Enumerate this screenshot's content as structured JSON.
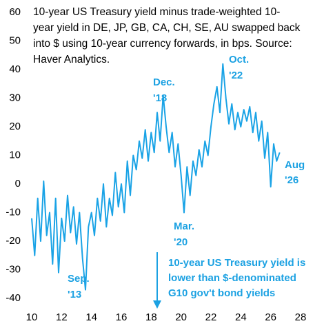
{
  "chart_data": {
    "type": "line",
    "title_lines": [
      "10-year US Treasury yield minus trade-weighted 10-",
      "year yield in DE, JP, GB, CA, CH, SE, AU swapped back",
      "into $ using 10-year currency forwards, in bps. Source:",
      "Haver Analytics."
    ],
    "annotations": [
      {
        "lines": [
          "Dec.",
          "'18"
        ]
      },
      {
        "lines": [
          "Oct.",
          "'22"
        ]
      },
      {
        "lines": [
          "Mar.",
          "'20"
        ]
      },
      {
        "lines": [
          "Sep.",
          "'13"
        ]
      },
      {
        "lines": [
          "Aug",
          "'26"
        ]
      },
      {
        "lines": [
          "10-year US Treasury yield is",
          "lower than $-denominated",
          "G10 gov't bond yields"
        ]
      }
    ],
    "color": "#1aa3e6",
    "x": [
      10.0,
      10.2,
      10.4,
      10.6,
      10.8,
      11.0,
      11.2,
      11.4,
      11.6,
      11.8,
      12.0,
      12.2,
      12.4,
      12.6,
      12.8,
      13.0,
      13.2,
      13.4,
      13.6,
      13.8,
      14.0,
      14.2,
      14.4,
      14.6,
      14.8,
      15.0,
      15.2,
      15.4,
      15.6,
      15.8,
      16.0,
      16.2,
      16.4,
      16.6,
      16.8,
      17.0,
      17.2,
      17.4,
      17.6,
      17.8,
      18.0,
      18.2,
      18.4,
      18.6,
      18.8,
      19.0,
      19.2,
      19.4,
      19.6,
      19.8,
      20.0,
      20.2,
      20.4,
      20.6,
      20.8,
      21.0,
      21.2,
      21.4,
      21.6,
      21.8,
      22.0,
      22.2,
      22.4,
      22.6,
      22.8,
      23.0,
      23.2,
      23.4,
      23.6,
      23.8,
      24.0,
      24.2,
      24.4,
      24.6,
      24.8,
      25.0,
      25.2,
      25.4,
      25.6,
      25.8,
      26.0,
      26.2,
      26.4,
      26.6
    ],
    "values": [
      -12,
      -25,
      -5,
      -20,
      1,
      -18,
      -10,
      -28,
      -5,
      -31,
      -12,
      -20,
      -4,
      -17,
      -8,
      -21,
      -10,
      -26,
      -37,
      -15,
      -10,
      -18,
      -5,
      -13,
      0,
      -15,
      -5,
      -11,
      4,
      -8,
      0,
      -10,
      8,
      -4,
      10,
      5,
      15,
      9,
      19,
      8,
      18,
      11,
      25,
      15,
      31,
      20,
      11,
      18,
      6,
      14,
      3,
      -10,
      6,
      -4,
      8,
      3,
      12,
      6,
      15,
      10,
      20,
      28,
      34,
      25,
      42,
      30,
      21,
      28,
      19,
      25,
      20,
      26,
      22,
      27,
      18,
      25,
      15,
      22,
      9,
      18,
      -1,
      14,
      8,
      11
    ],
    "xlim": [
      10,
      28
    ],
    "xticks": [
      10,
      12,
      14,
      16,
      18,
      20,
      22,
      24,
      26,
      28
    ],
    "ylim": [
      -40,
      60
    ],
    "yticks": [
      -40,
      -30,
      -20,
      -10,
      0,
      10,
      20,
      30,
      40,
      50,
      60
    ]
  }
}
